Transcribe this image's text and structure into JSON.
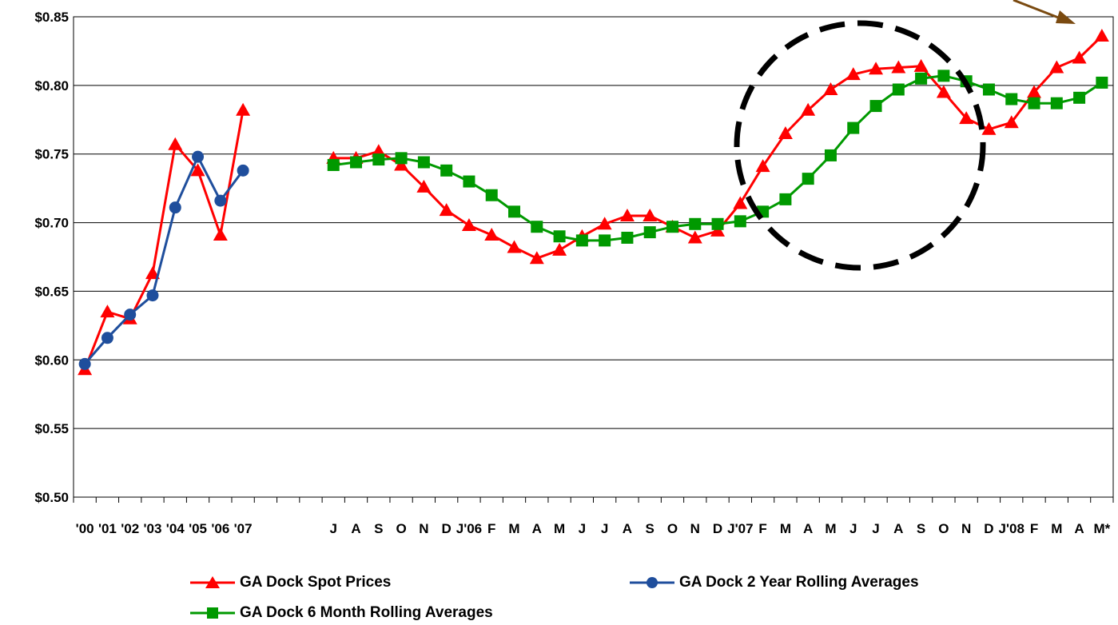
{
  "chart_data": {
    "type": "line",
    "ylim": [
      0.5,
      0.85
    ],
    "yticks": [
      0.85,
      0.8,
      0.75,
      0.7,
      0.65,
      0.6,
      0.55,
      0.5
    ],
    "ytick_labels": [
      "$0.85",
      "$0.80",
      "$0.75",
      "$0.70",
      "$0.65",
      "$0.60",
      "$0.55",
      "$0.50"
    ],
    "grid": true,
    "legend_position": "bottom",
    "categories": [
      "'00",
      "'01",
      "'02",
      "'03",
      "'04",
      "'05",
      "'06",
      "'07",
      "",
      "",
      "",
      "J",
      "A",
      "S",
      "O",
      "N",
      "D",
      "J'06",
      "F",
      "M",
      "A",
      "M",
      "J",
      "J",
      "A",
      "S",
      "O",
      "N",
      "D",
      "J'07",
      "F",
      "M",
      "A",
      "M",
      "J",
      "J",
      "A",
      "S",
      "O",
      "N",
      "D",
      "J'08",
      "F",
      "M",
      "A",
      "M*"
    ],
    "series": [
      {
        "name": "GA Dock Spot Prices",
        "color": "#ff0000",
        "marker": "triangle",
        "segments": [
          [
            0.593,
            0.635,
            0.63,
            0.663,
            0.757,
            0.738,
            0.691,
            0.782
          ],
          [
            0.747,
            0.747,
            0.752,
            0.742,
            0.726,
            0.709,
            0.698,
            0.691,
            0.682,
            0.674,
            0.68,
            0.69,
            0.699,
            0.705,
            0.705,
            0.697,
            0.689,
            0.694,
            0.714,
            0.741,
            0.765,
            0.782,
            0.797,
            0.808,
            0.812,
            0.813,
            0.814,
            0.795,
            0.776,
            0.768,
            0.773,
            0.795,
            0.813,
            0.82,
            0.836
          ]
        ],
        "segment_starts": [
          0,
          11
        ]
      },
      {
        "name": "GA Dock 2 Year Rolling Averages",
        "color": "#1f4e9c",
        "marker": "circle",
        "segments": [
          [
            0.597,
            0.616,
            0.633,
            0.647,
            0.711,
            0.748,
            0.716,
            0.738
          ]
        ],
        "segment_starts": [
          0
        ]
      },
      {
        "name": "GA Dock 6 Month Rolling Averages",
        "color": "#009900",
        "marker": "square",
        "segments": [
          [
            0.742,
            0.744,
            0.746,
            0.747,
            0.744,
            0.738,
            0.73,
            0.72,
            0.708,
            0.697,
            0.69,
            0.687,
            0.687,
            0.689,
            0.693,
            0.697,
            0.699,
            0.699,
            0.701,
            0.708,
            0.717,
            0.732,
            0.749,
            0.769,
            0.785,
            0.797,
            0.805,
            0.807,
            0.803,
            0.797,
            0.79,
            0.787,
            0.787,
            0.791,
            0.802
          ]
        ],
        "segment_starts": [
          11
        ]
      }
    ],
    "annotation_color": "#7a4a10"
  },
  "legend": {
    "spot": "GA Dock Spot Prices",
    "two_year": "GA Dock 2 Year Rolling Averages",
    "six_month": "GA Dock 6 Month Rolling Averages"
  }
}
